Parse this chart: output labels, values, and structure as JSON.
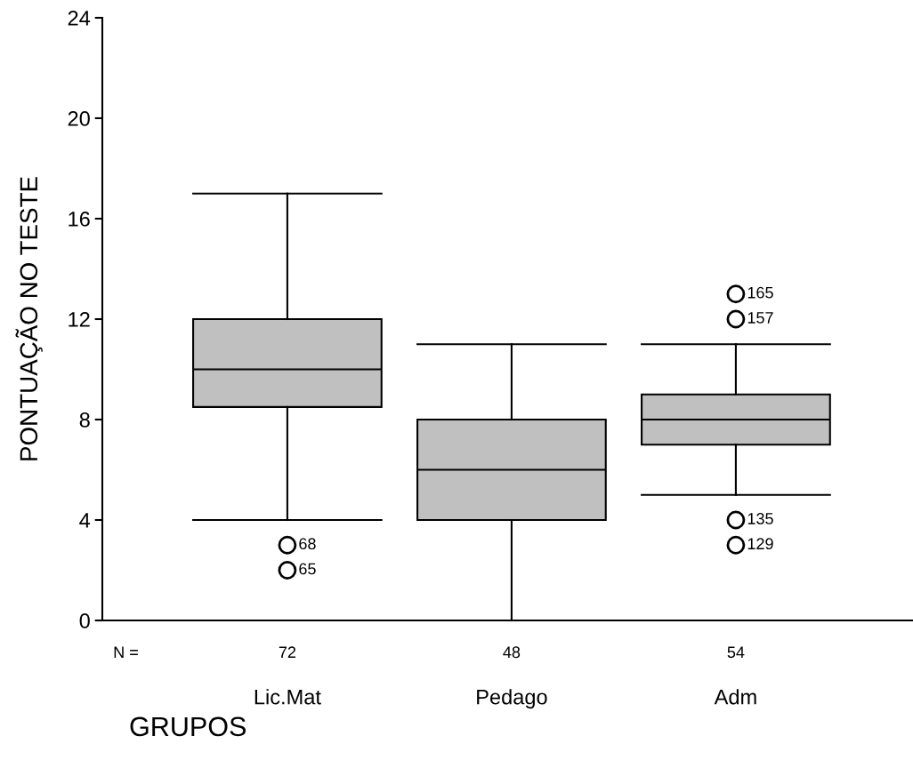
{
  "chart_data": {
    "type": "box",
    "xlabel": "GRUPOS",
    "ylabel": "PONTUAÇÃO NO TESTE",
    "categories": [
      "Lic.Mat",
      "Pedago",
      "Adm"
    ],
    "boxes": [
      {
        "low": 4,
        "q1": 8.5,
        "median": 10,
        "q3": 12,
        "high": 17,
        "outliers": [
          3,
          2
        ]
      },
      {
        "low": 0,
        "q1": 4,
        "median": 6,
        "q3": 8,
        "high": 11
      },
      {
        "low": 5,
        "q1": 7,
        "median": 8,
        "q3": 9,
        "high": 11,
        "outliers": [
          13,
          12,
          4,
          3
        ]
      }
    ],
    "color": "#c0c0c0",
    "ylim": [
      0,
      24
    ],
    "yticks": [
      0,
      4,
      8,
      12,
      16,
      20,
      24
    ],
    "grid": false,
    "annotations": [
      "N =",
      "72",
      "48",
      "54",
      "68",
      "65",
      "165",
      "157",
      "135",
      "129"
    ]
  }
}
